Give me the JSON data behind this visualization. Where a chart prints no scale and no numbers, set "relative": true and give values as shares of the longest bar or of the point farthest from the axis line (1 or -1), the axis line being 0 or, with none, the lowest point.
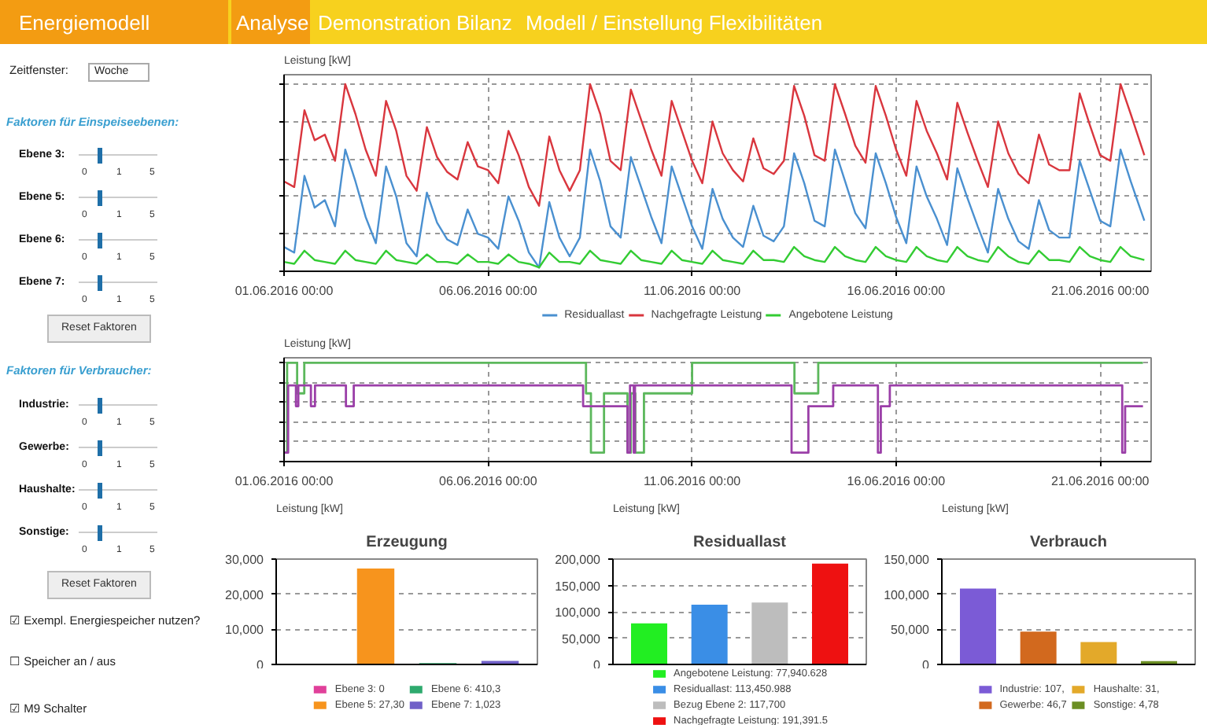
{
  "chart_data": [
    {
      "type": "other",
      "title": "Energiemodell",
      "annotations": [
        "Analyse",
        "Demonstration",
        "Bilanz",
        "Modell / Einstellung Flexibilitäten",
        "Zeitfenster:",
        "Woche",
        "Faktoren für Einspeiseebenen:",
        "Ebene 3:",
        "0",
        "1",
        "5",
        "Ebene 5:",
        "0",
        "1",
        "5",
        "Ebene 6:",
        "0",
        "1",
        "5",
        "Ebene 7:",
        "0",
        "1",
        "5",
        "Reset Faktoren",
        "Faktoren für Verbraucher:",
        "Industrie:",
        "0",
        "1",
        "5",
        "Gewerbe:",
        "0",
        "1",
        "5",
        "Haushalte:",
        "0",
        "1",
        "5",
        "Sonstige:",
        "0",
        "1",
        "5",
        "Reset Faktoren",
        "☑ Exempl. Energiespeicher nutzen?",
        "☐ Speicher an / aus",
        "☑ M9 Schalter"
      ]
    },
    {
      "type": "line",
      "ylabel": "Leistung [kW]",
      "relative": true,
      "tick_labels": "x",
      "grid": true,
      "legend": "bottom",
      "xlim": [
        "2016-06-01T00:00",
        "2016-06-22T06:00"
      ],
      "xticks": [
        {
          "value": "2016-06-01T00:00",
          "label": "01.06.2016 00:00"
        },
        {
          "value": "2016-06-06T00:00",
          "label": "06.06.2016 00:00"
        },
        {
          "value": "2016-06-11T00:00",
          "label": "11.06.2016 00:00"
        },
        {
          "value": "2016-06-16T00:00",
          "label": "16.06.2016 00:00"
        },
        {
          "value": "2016-06-21T00:00",
          "label": "21.06.2016 00:00"
        }
      ],
      "x": [
        "2016-06-01T00:00",
        "2016-06-01T06:00",
        "2016-06-01T12:00",
        "2016-06-01T18:00",
        "2016-06-02T00:00",
        "2016-06-02T06:00",
        "2016-06-02T12:00",
        "2016-06-02T18:00",
        "2016-06-03T00:00",
        "2016-06-03T06:00",
        "2016-06-03T12:00",
        "2016-06-03T18:00",
        "2016-06-04T00:00",
        "2016-06-04T06:00",
        "2016-06-04T12:00",
        "2016-06-04T18:00",
        "2016-06-05T00:00",
        "2016-06-05T06:00",
        "2016-06-05T12:00",
        "2016-06-05T18:00",
        "2016-06-06T00:00",
        "2016-06-06T06:00",
        "2016-06-06T12:00",
        "2016-06-06T18:00",
        "2016-06-07T00:00",
        "2016-06-07T06:00",
        "2016-06-07T12:00",
        "2016-06-07T18:00",
        "2016-06-08T00:00",
        "2016-06-08T06:00",
        "2016-06-08T12:00",
        "2016-06-08T18:00",
        "2016-06-09T00:00",
        "2016-06-09T06:00",
        "2016-06-09T12:00",
        "2016-06-09T18:00",
        "2016-06-10T00:00",
        "2016-06-10T06:00",
        "2016-06-10T12:00",
        "2016-06-10T18:00",
        "2016-06-11T00:00",
        "2016-06-11T06:00",
        "2016-06-11T12:00",
        "2016-06-11T18:00",
        "2016-06-12T00:00",
        "2016-06-12T06:00",
        "2016-06-12T12:00",
        "2016-06-12T18:00",
        "2016-06-13T00:00",
        "2016-06-13T06:00",
        "2016-06-13T12:00",
        "2016-06-13T18:00",
        "2016-06-14T00:00",
        "2016-06-14T06:00",
        "2016-06-14T12:00",
        "2016-06-14T18:00",
        "2016-06-15T00:00",
        "2016-06-15T06:00",
        "2016-06-15T12:00",
        "2016-06-15T18:00",
        "2016-06-16T00:00",
        "2016-06-16T06:00",
        "2016-06-16T12:00",
        "2016-06-16T18:00",
        "2016-06-17T00:00",
        "2016-06-17T06:00",
        "2016-06-17T12:00",
        "2016-06-17T18:00",
        "2016-06-18T00:00",
        "2016-06-18T06:00",
        "2016-06-18T12:00",
        "2016-06-18T18:00",
        "2016-06-19T00:00",
        "2016-06-19T06:00",
        "2016-06-19T12:00",
        "2016-06-19T18:00",
        "2016-06-20T00:00",
        "2016-06-20T06:00",
        "2016-06-20T12:00",
        "2016-06-20T18:00",
        "2016-06-21T00:00",
        "2016-06-21T06:00",
        "2016-06-21T12:00",
        "2016-06-21T18:00",
        "2016-06-22T02:00"
      ],
      "series": [
        {
          "name": "Residuallast",
          "color": "#4a90d0",
          "values": [
            0.13,
            0.1,
            0.51,
            0.34,
            0.38,
            0.24,
            0.65,
            0.48,
            0.29,
            0.15,
            0.56,
            0.4,
            0.15,
            0.08,
            0.42,
            0.26,
            0.17,
            0.14,
            0.33,
            0.2,
            0.18,
            0.12,
            0.4,
            0.27,
            0.1,
            0.02,
            0.37,
            0.18,
            0.08,
            0.18,
            0.65,
            0.48,
            0.24,
            0.18,
            0.61,
            0.45,
            0.29,
            0.15,
            0.56,
            0.4,
            0.24,
            0.12,
            0.44,
            0.28,
            0.18,
            0.13,
            0.35,
            0.19,
            0.16,
            0.24,
            0.63,
            0.47,
            0.27,
            0.24,
            0.65,
            0.48,
            0.31,
            0.23,
            0.63,
            0.47,
            0.29,
            0.15,
            0.56,
            0.4,
            0.28,
            0.14,
            0.55,
            0.39,
            0.24,
            0.1,
            0.44,
            0.28,
            0.16,
            0.12,
            0.38,
            0.22,
            0.18,
            0.18,
            0.59,
            0.43,
            0.27,
            0.24,
            0.65,
            0.48,
            0.27
          ]
        },
        {
          "name": "Nachgefragte Leistung",
          "color": "#d9363e",
          "values": [
            0.48,
            0.45,
            0.86,
            0.7,
            0.73,
            0.59,
            1.0,
            0.84,
            0.65,
            0.51,
            0.91,
            0.75,
            0.51,
            0.43,
            0.77,
            0.61,
            0.53,
            0.49,
            0.69,
            0.56,
            0.54,
            0.47,
            0.75,
            0.62,
            0.45,
            0.35,
            0.72,
            0.54,
            0.43,
            0.54,
            1.0,
            0.84,
            0.59,
            0.54,
            0.97,
            0.81,
            0.65,
            0.51,
            0.91,
            0.75,
            0.59,
            0.47,
            0.8,
            0.63,
            0.54,
            0.48,
            0.71,
            0.55,
            0.52,
            0.59,
            0.99,
            0.83,
            0.62,
            0.59,
            1.0,
            0.84,
            0.67,
            0.58,
            0.99,
            0.83,
            0.65,
            0.51,
            0.91,
            0.75,
            0.63,
            0.49,
            0.9,
            0.74,
            0.59,
            0.45,
            0.8,
            0.63,
            0.52,
            0.47,
            0.73,
            0.57,
            0.54,
            0.54,
            0.95,
            0.78,
            0.62,
            0.59,
            1.0,
            0.84,
            0.62
          ]
        },
        {
          "name": "Angebotene Leistung",
          "color": "#33cc33",
          "values": [
            0.05,
            0.04,
            0.11,
            0.06,
            0.05,
            0.04,
            0.11,
            0.06,
            0.05,
            0.04,
            0.11,
            0.06,
            0.05,
            0.04,
            0.09,
            0.05,
            0.05,
            0.04,
            0.09,
            0.05,
            0.05,
            0.04,
            0.09,
            0.05,
            0.04,
            0.02,
            0.1,
            0.05,
            0.05,
            0.04,
            0.11,
            0.06,
            0.05,
            0.04,
            0.11,
            0.06,
            0.05,
            0.04,
            0.11,
            0.06,
            0.05,
            0.04,
            0.11,
            0.06,
            0.05,
            0.04,
            0.11,
            0.06,
            0.06,
            0.05,
            0.13,
            0.08,
            0.06,
            0.05,
            0.13,
            0.08,
            0.06,
            0.05,
            0.13,
            0.08,
            0.06,
            0.05,
            0.13,
            0.08,
            0.06,
            0.05,
            0.13,
            0.08,
            0.06,
            0.05,
            0.13,
            0.08,
            0.05,
            0.04,
            0.11,
            0.06,
            0.06,
            0.05,
            0.13,
            0.08,
            0.06,
            0.05,
            0.13,
            0.08,
            0.06
          ]
        }
      ]
    },
    {
      "type": "step",
      "ylabel": "Leistung [kW]",
      "relative": true,
      "tick_labels": "x",
      "grid": true,
      "xlim": [
        "2016-06-01T00:00",
        "2016-06-22T06:00"
      ],
      "xticks": [
        {
          "value": "2016-06-01T00:00",
          "label": "01.06.2016 00:00"
        },
        {
          "value": "2016-06-06T00:00",
          "label": "06.06.2016 00:00"
        },
        {
          "value": "2016-06-11T00:00",
          "label": "11.06.2016 00:00"
        },
        {
          "value": "2016-06-16T00:00",
          "label": "16.06.2016 00:00"
        },
        {
          "value": "2016-06-21T00:00",
          "label": "21.06.2016 00:00"
        }
      ],
      "series": [
        {
          "color": "#5cb85c",
          "x": [
            "2016-06-01T00:00",
            "2016-06-01T01:48",
            "2016-06-01T07:42",
            "2016-06-01T11:54",
            "2016-06-08T09:36",
            "2016-06-08T12:30",
            "2016-06-08T20:12",
            "2016-06-09T10:00",
            "2016-06-09T12:00",
            "2016-06-09T14:36",
            "2016-06-09T19:42",
            "2016-06-11T00:00",
            "2016-06-13T12:12",
            "2016-06-14T02:12",
            "2016-06-22T01:12"
          ],
          "values": [
            0.09,
            1,
            0.69,
            1,
            0.69,
            0.09,
            0.69,
            0.09,
            0.69,
            0.09,
            0.69,
            1,
            0.69,
            1,
            1
          ]
        },
        {
          "color": "#9b3fa8",
          "x": [
            "2016-06-01T00:00",
            "2016-06-01T02:24",
            "2016-06-01T07:00",
            "2016-06-01T08:24",
            "2016-06-01T15:48",
            "2016-06-01T18:12",
            "2016-06-02T12:24",
            "2016-06-02T17:00",
            "2016-06-08T07:54",
            "2016-06-09T10:00",
            "2016-06-09T11:30",
            "2016-06-09T13:42",
            "2016-06-09T14:24",
            "2016-06-13T10:30",
            "2016-06-13T20:24",
            "2016-06-14T11:00",
            "2016-06-15T13:18",
            "2016-06-15T15:00",
            "2016-06-15T20:18",
            "2016-06-21T13:00",
            "2016-06-21T14:42",
            "2016-06-22T01:12"
          ],
          "values": [
            0.09,
            0.77,
            0.56,
            0.77,
            0.56,
            0.77,
            0.56,
            0.77,
            0.56,
            0.09,
            0.77,
            0.09,
            0.77,
            0.09,
            0.56,
            0.77,
            0.09,
            0.56,
            0.77,
            0.09,
            0.56,
            0.56
          ]
        }
      ]
    },
    {
      "type": "bar",
      "title": "Erzeugung",
      "ylabel": "Leistung [kW]",
      "categories": [
        null,
        null,
        null,
        null
      ],
      "tick_labels": "y",
      "grid": "y",
      "legend": "bottom",
      "ylim": [
        0,
        30000
      ],
      "yticks": [
        0,
        {
          "value": 10000,
          "label": "10,000"
        },
        {
          "value": 20000,
          "label": "20,000"
        },
        {
          "value": 30000,
          "label": "30,000"
        }
      ],
      "series": [
        {
          "name": "Ebene 3: 0",
          "color": "#e0409a",
          "values": [
            0,
            null,
            null,
            null
          ]
        },
        {
          "name": "Ebene 5: 27,30",
          "color": "#f7941d",
          "values": [
            null,
            27300,
            null,
            null
          ]
        },
        {
          "name": "Ebene 6: 410,3",
          "color": "#2eaa6e",
          "values": [
            null,
            null,
            410.3,
            null
          ]
        },
        {
          "name": "Ebene 7: 1,023",
          "color": "#7060c8",
          "values": [
            null,
            null,
            null,
            1023
          ]
        }
      ]
    },
    {
      "type": "bar",
      "title": "Residuallast",
      "ylabel": "Leistung [kW]",
      "categories": [
        null,
        null,
        null,
        null
      ],
      "tick_labels": "y",
      "grid": "y",
      "legend": "bottom",
      "ylim": [
        0,
        200000
      ],
      "yticks": [
        0,
        {
          "value": 50000,
          "label": "50,000"
        },
        {
          "value": 100000,
          "label": "100,000"
        },
        {
          "value": 150000,
          "label": "150,000"
        },
        {
          "value": 200000,
          "label": "200,000"
        }
      ],
      "series": [
        {
          "name": "Angebotene Leistung: 77,940.628",
          "color": "#22ee22",
          "values": [
            77940.628,
            null,
            null,
            null
          ]
        },
        {
          "name": "Residuallast: 113,450.988",
          "color": "#3a8ee6",
          "values": [
            null,
            113450.988,
            null,
            null
          ]
        },
        {
          "name": "Bezug Ebene 2: 117,700",
          "color": "#bdbdbd",
          "values": [
            null,
            null,
            117700,
            null
          ]
        },
        {
          "name": "Nachgefragte Leistung: 191,391.5",
          "color": "#ee1111",
          "values": [
            null,
            null,
            null,
            191391.5
          ]
        }
      ]
    },
    {
      "type": "bar",
      "title": "Verbrauch",
      "ylabel": "Leistung [kW]",
      "categories": [
        null,
        null,
        null,
        null
      ],
      "tick_labels": "y",
      "grid": "y",
      "legend": "bottom",
      "ylim": [
        0,
        150000
      ],
      "yticks": [
        0,
        {
          "value": 50000,
          "label": "50,000"
        },
        {
          "value": 100000,
          "label": "100,000"
        },
        {
          "value": 150000,
          "label": "150,000"
        }
      ],
      "series": [
        {
          "name": "Industrie: 107,",
          "color": "#7b5bd6",
          "values": [
            107900,
            null,
            null,
            null
          ]
        },
        {
          "name": "Gewerbe: 46,7",
          "color": "#d2691e",
          "values": [
            null,
            46700,
            null,
            null
          ]
        },
        {
          "name": "Haushalte: 31,",
          "color": "#e3a92a",
          "values": [
            null,
            null,
            31900,
            null
          ]
        },
        {
          "name": "Sonstige: 4,78",
          "color": "#6b8e23",
          "values": [
            null,
            null,
            null,
            4780
          ]
        }
      ]
    }
  ]
}
